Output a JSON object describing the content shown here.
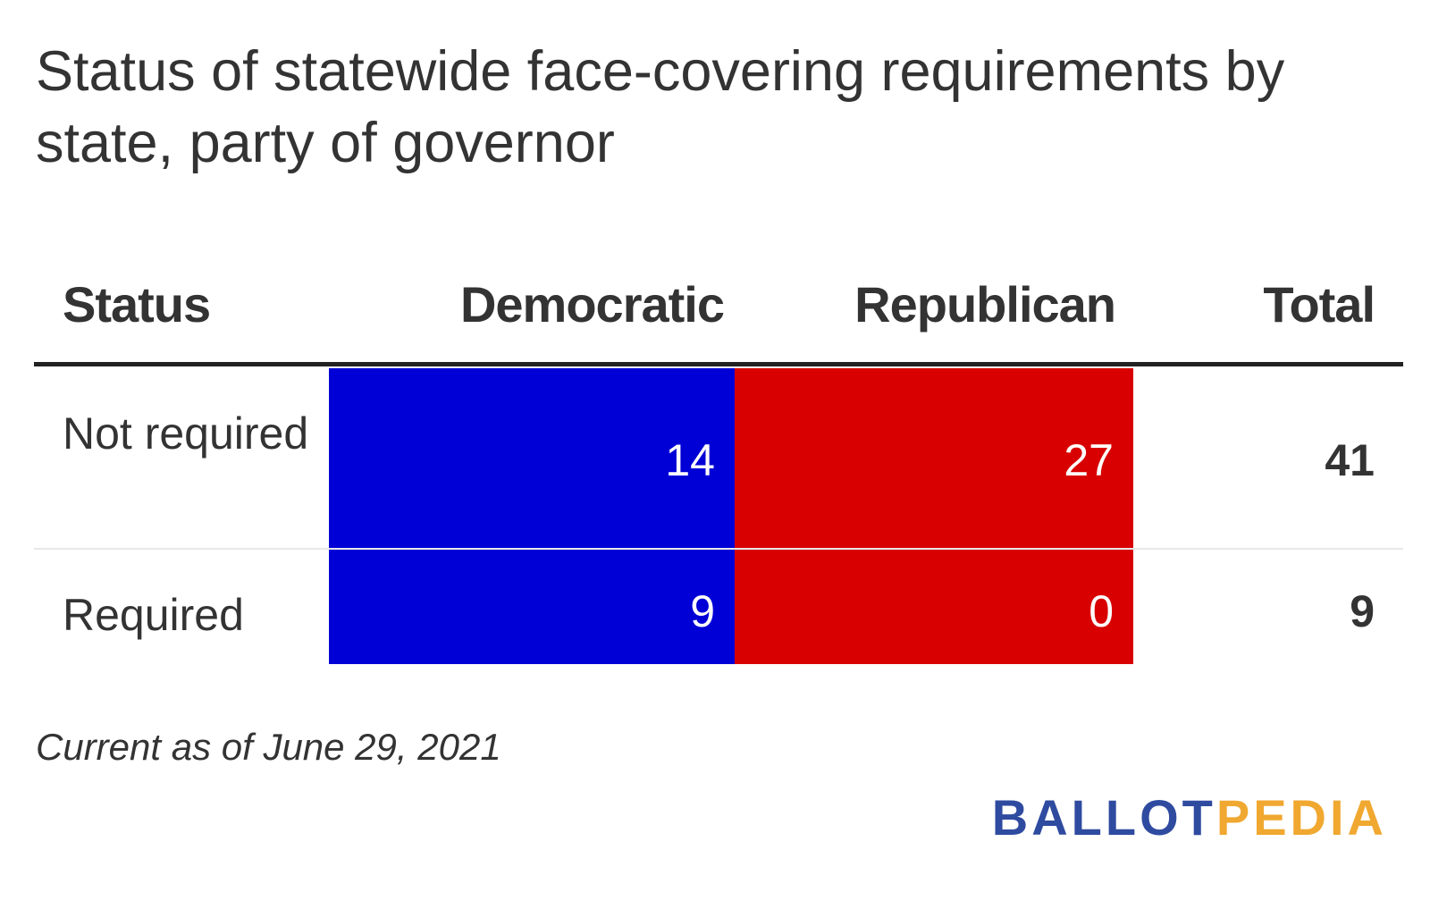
{
  "title": "Status of statewide face-covering requirements by state, party of governor",
  "columns": [
    "Status",
    "Democratic",
    "Republican",
    "Total"
  ],
  "rows": [
    {
      "status": "Not required",
      "democratic": "14",
      "republican": "27",
      "total": "41"
    },
    {
      "status": "Required",
      "democratic": "9",
      "republican": "0",
      "total": "9"
    }
  ],
  "footnote": "Current as of June 29, 2021",
  "logo": {
    "part1": "BALLOT",
    "part2": "PEDIA"
  },
  "colors": {
    "democratic": "#0000d6",
    "republican": "#d80000",
    "logo_ballot": "#2f4ba0",
    "logo_pedia": "#f0a830"
  },
  "chart_data": {
    "type": "table",
    "title": "Status of statewide face-covering requirements by state, party of governor",
    "columns": [
      "Status",
      "Democratic",
      "Republican",
      "Total"
    ],
    "rows": [
      [
        "Not required",
        14,
        27,
        41
      ],
      [
        "Required",
        9,
        0,
        9
      ]
    ],
    "cell_colors": {
      "Democratic": "#0000d6",
      "Republican": "#d80000"
    }
  }
}
